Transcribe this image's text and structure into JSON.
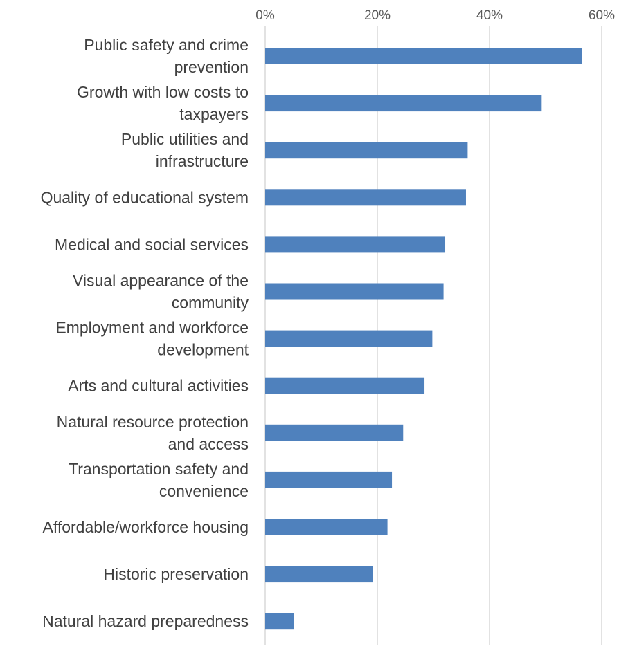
{
  "chart_data": {
    "type": "bar",
    "orientation": "horizontal",
    "title": "",
    "xlabel": "",
    "ylabel": "",
    "x_axis_position": "top",
    "xlim": [
      0,
      60
    ],
    "x_ticks": [
      0,
      20,
      40,
      60
    ],
    "x_tick_labels": [
      "0%",
      "20%",
      "40%",
      "60%"
    ],
    "grid": "vertical",
    "legend": "none",
    "bar_color": "#4f81bd",
    "categories": [
      [
        "Public safety and crime",
        "prevention"
      ],
      [
        "Growth with low costs to",
        "taxpayers"
      ],
      [
        "Public utilities and",
        "infrastructure"
      ],
      [
        "Quality of educational system"
      ],
      [
        "Medical and social services"
      ],
      [
        "Visual appearance of the",
        "community"
      ],
      [
        "Employment and workforce",
        "development"
      ],
      [
        "Arts and cultural activities"
      ],
      [
        "Natural resource protection",
        "and access"
      ],
      [
        "Transportation safety and",
        "convenience"
      ],
      [
        "Affordable/workforce housing"
      ],
      [
        "Historic preservation"
      ],
      [
        "Natural hazard preparedness"
      ]
    ],
    "values": [
      56.5,
      49.3,
      36.1,
      35.8,
      32.1,
      31.8,
      29.8,
      28.4,
      24.6,
      22.6,
      21.8,
      19.2,
      5.1
    ]
  }
}
